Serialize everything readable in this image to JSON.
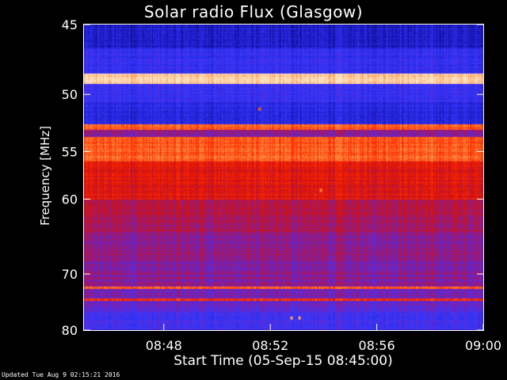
{
  "chart_data": {
    "type": "heatmap",
    "title": "Solar radio Flux (Glasgow)",
    "xlabel": "Start Time (05-Sep-15 08:45:00)",
    "ylabel": "Frequency [MHz]",
    "x_ticks": [
      "08:48",
      "08:52",
      "08:56",
      "09:00"
    ],
    "x_tick_minutes": [
      3,
      7,
      11,
      15
    ],
    "x_range_minutes": [
      0,
      15
    ],
    "y_ticks": [
      45,
      50,
      55,
      60,
      70,
      80
    ],
    "y_range": [
      45,
      80
    ],
    "y_scale": "reciprocal",
    "grid": false,
    "colormap": [
      "#00006e",
      "#2020d0",
      "#3838ff",
      "#7a1fb0",
      "#d01010",
      "#ff2a00",
      "#ff8a3a",
      "#ffe8c8"
    ],
    "bands": [
      {
        "f": [
          45.0,
          46.6
        ],
        "level": 0.15
      },
      {
        "f": [
          46.6,
          48.4
        ],
        "level": 0.25
      },
      {
        "f": [
          48.4,
          49.2
        ],
        "level": 0.97
      },
      {
        "f": [
          49.2,
          50.6
        ],
        "level": 0.28
      },
      {
        "f": [
          50.6,
          52.5
        ],
        "level": 0.2
      },
      {
        "f": [
          52.5,
          53.0
        ],
        "level": 0.8
      },
      {
        "f": [
          53.0,
          53.6
        ],
        "level": 0.45
      },
      {
        "f": [
          53.6,
          56.0
        ],
        "level": 0.78
      },
      {
        "f": [
          56.0,
          60.0
        ],
        "level": 0.62
      },
      {
        "f": [
          60.0,
          64.0
        ],
        "level": 0.52
      },
      {
        "f": [
          64.0,
          68.0
        ],
        "level": 0.46
      },
      {
        "f": [
          68.0,
          72.0
        ],
        "level": 0.44
      },
      {
        "f": [
          72.0,
          72.4
        ],
        "level": 0.82
      },
      {
        "f": [
          72.4,
          74.0
        ],
        "level": 0.42
      },
      {
        "f": [
          74.0,
          74.4
        ],
        "level": 0.72
      },
      {
        "f": [
          74.4,
          76.5
        ],
        "level": 0.38
      },
      {
        "f": [
          76.5,
          80.0
        ],
        "level": 0.3
      }
    ],
    "hot_spots": [
      {
        "t": 6.6,
        "f": 51.2,
        "level": 0.8
      },
      {
        "t": 8.9,
        "f": 59.0,
        "level": 0.85
      },
      {
        "t": 7.8,
        "f": 77.6,
        "level": 0.9
      },
      {
        "t": 8.1,
        "f": 77.6,
        "level": 0.9
      }
    ]
  },
  "footer": "Updated Tue Aug  9 02:15:21 2016"
}
